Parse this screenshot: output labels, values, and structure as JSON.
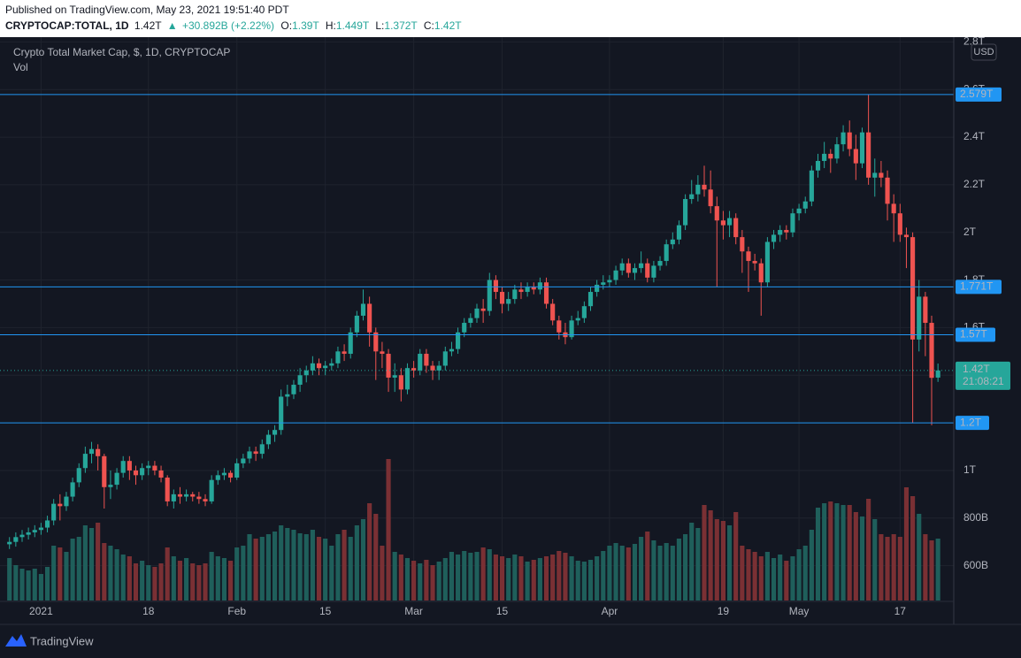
{
  "header": {
    "published": "Published on TradingView.com, May 23, 2021 19:51:40 PDT",
    "symbol": "CRYPTOCAP:TOTAL, 1D",
    "last": "1.42T",
    "arrow": "▲",
    "change": "+30.892B (+2.22%)",
    "ohlc": [
      {
        "label": "O:",
        "value": "1.39T"
      },
      {
        "label": "H:",
        "value": "1.449T"
      },
      {
        "label": "L:",
        "value": "1.372T"
      },
      {
        "label": "C:",
        "value": "1.42T"
      }
    ]
  },
  "footer": {
    "brand": "TradingView"
  },
  "chart_data": {
    "type": "candlestick",
    "title": "Crypto Total Market Cap, $, 1D, CRYPTOCAP",
    "volume_label": "Vol",
    "currency": "USD",
    "up_color": "#26a69a",
    "down_color": "#ef5350",
    "volume_up_color": "#1f5f5b",
    "volume_down_color": "#7a3034",
    "level_color": "#2196f3",
    "grid": true,
    "xlim": [
      -1.5,
      149.5
    ],
    "xticks": [
      {
        "value": 5,
        "label": "2021"
      },
      {
        "value": 22,
        "label": "18"
      },
      {
        "value": 36,
        "label": "Feb"
      },
      {
        "value": 50,
        "label": "15"
      },
      {
        "value": 64,
        "label": "Mar"
      },
      {
        "value": 78,
        "label": "15"
      },
      {
        "value": 95,
        "label": "Apr"
      },
      {
        "value": 113,
        "label": "19"
      },
      {
        "value": 125,
        "label": "May"
      },
      {
        "value": 141,
        "label": "17"
      }
    ],
    "ylim": [
      0.45,
      2.82
    ],
    "yticks": [
      {
        "value": 2.8,
        "label": "2.8T"
      },
      {
        "value": 2.6,
        "label": "2.6T"
      },
      {
        "value": 2.4,
        "label": "2.4T"
      },
      {
        "value": 2.2,
        "label": "2.2T"
      },
      {
        "value": 2,
        "label": "2T"
      },
      {
        "value": 1.8,
        "label": "1.8T"
      },
      {
        "value": 1.6,
        "label": "1.6T"
      },
      {
        "value": 1.4,
        "label": "1.4T"
      },
      {
        "value": 1.2,
        "label": "1.2T"
      },
      {
        "value": 1,
        "label": "1T"
      },
      {
        "value": 0.8,
        "label": "800B"
      },
      {
        "value": 0.6,
        "label": "600B"
      }
    ],
    "levels": [
      {
        "value": 2.579,
        "label": "2.579T"
      },
      {
        "value": 1.771,
        "label": "1.771T"
      },
      {
        "value": 1.57,
        "label": "1.57T"
      },
      {
        "value": 1.2,
        "label": "1.2T"
      }
    ],
    "last": {
      "value": 1.42,
      "label": "1.42T",
      "countdown": "21:08:21"
    },
    "open": [
      0.69,
      0.7,
      0.72,
      0.73,
      0.74,
      0.75,
      0.76,
      0.79,
      0.86,
      0.85,
      0.89,
      0.95,
      1.01,
      1.07,
      1.09,
      1.06,
      0.93,
      0.94,
      0.99,
      1.04,
      1.0,
      0.98,
      1.01,
      1.02,
      1.0,
      0.97,
      0.87,
      0.9,
      0.89,
      0.9,
      0.89,
      0.88,
      0.87,
      0.96,
      0.98,
      0.99,
      0.97,
      1.03,
      1.05,
      1.08,
      1.07,
      1.11,
      1.15,
      1.17,
      1.31,
      1.32,
      1.36,
      1.4,
      1.42,
      1.45,
      1.43,
      1.44,
      1.45,
      1.5,
      1.49,
      1.58,
      1.65,
      1.7,
      1.58,
      1.5,
      1.49,
      1.39,
      1.4,
      1.34,
      1.43,
      1.42,
      1.49,
      1.44,
      1.42,
      1.44,
      1.5,
      1.51,
      1.58,
      1.62,
      1.64,
      1.68,
      1.67,
      1.8,
      1.75,
      1.7,
      1.72,
      1.76,
      1.75,
      1.77,
      1.76,
      1.79,
      1.7,
      1.63,
      1.58,
      1.56,
      1.63,
      1.64,
      1.69,
      1.75,
      1.78,
      1.79,
      1.8,
      1.84,
      1.87,
      1.83,
      1.85,
      1.87,
      1.81,
      1.86,
      1.88,
      1.95,
      1.97,
      2.03,
      2.14,
      2.16,
      2.2,
      2.18,
      2.11,
      2.05,
      2.03,
      2.06,
      1.98,
      1.92,
      1.88,
      1.87,
      1.79,
      1.96,
      1.99,
      2.01,
      2.0,
      2.08,
      2.1,
      2.13,
      2.26,
      2.3,
      2.33,
      2.31,
      2.37,
      2.42,
      2.35,
      2.29,
      2.42,
      2.23,
      2.25,
      2.23,
      2.12,
      2.08,
      1.99,
      1.98,
      1.55,
      1.73,
      1.62,
      1.39
    ],
    "high": [
      0.72,
      0.74,
      0.75,
      0.76,
      0.77,
      0.78,
      0.81,
      0.88,
      0.9,
      0.91,
      0.97,
      1.03,
      1.1,
      1.12,
      1.11,
      1.07,
      1.0,
      1.01,
      1.06,
      1.06,
      1.02,
      1.03,
      1.04,
      1.04,
      1.02,
      0.98,
      0.92,
      0.93,
      0.92,
      0.91,
      0.91,
      0.9,
      0.98,
      1.0,
      1.01,
      1.0,
      1.05,
      1.07,
      1.1,
      1.1,
      1.13,
      1.17,
      1.19,
      1.34,
      1.36,
      1.38,
      1.43,
      1.44,
      1.48,
      1.47,
      1.46,
      1.47,
      1.52,
      1.53,
      1.6,
      1.67,
      1.76,
      1.73,
      1.6,
      1.54,
      1.51,
      1.45,
      1.43,
      1.45,
      1.46,
      1.51,
      1.51,
      1.46,
      1.46,
      1.52,
      1.54,
      1.6,
      1.64,
      1.66,
      1.7,
      1.72,
      1.83,
      1.82,
      1.77,
      1.75,
      1.78,
      1.79,
      1.79,
      1.79,
      1.81,
      1.81,
      1.72,
      1.65,
      1.62,
      1.65,
      1.67,
      1.71,
      1.77,
      1.8,
      1.82,
      1.82,
      1.86,
      1.89,
      1.89,
      1.87,
      1.92,
      1.89,
      1.88,
      1.9,
      1.97,
      2.0,
      2.05,
      2.16,
      2.22,
      2.24,
      2.28,
      2.26,
      2.15,
      2.09,
      2.09,
      2.08,
      2.01,
      1.94,
      1.91,
      1.89,
      1.98,
      2.01,
      2.03,
      2.03,
      2.1,
      2.12,
      2.15,
      2.28,
      2.33,
      2.38,
      2.35,
      2.4,
      2.45,
      2.47,
      2.41,
      2.44,
      2.579,
      2.31,
      2.3,
      2.26,
      2.16,
      2.12,
      2.02,
      2.0,
      1.8,
      1.75,
      1.65,
      1.449
    ],
    "low": [
      0.67,
      0.68,
      0.7,
      0.71,
      0.72,
      0.73,
      0.74,
      0.77,
      0.79,
      0.83,
      0.87,
      0.93,
      0.99,
      1.03,
      1.0,
      0.84,
      0.88,
      0.92,
      0.97,
      0.96,
      0.94,
      0.96,
      0.98,
      0.98,
      0.95,
      0.85,
      0.84,
      0.86,
      0.87,
      0.87,
      0.86,
      0.85,
      0.86,
      0.94,
      0.96,
      0.95,
      0.96,
      1.01,
      1.03,
      1.04,
      1.05,
      1.09,
      1.12,
      1.15,
      1.27,
      1.3,
      1.33,
      1.37,
      1.4,
      1.4,
      1.4,
      1.42,
      1.43,
      1.46,
      1.47,
      1.56,
      1.63,
      1.52,
      1.38,
      1.43,
      1.33,
      1.33,
      1.29,
      1.32,
      1.39,
      1.4,
      1.41,
      1.38,
      1.38,
      1.42,
      1.48,
      1.49,
      1.56,
      1.6,
      1.62,
      1.62,
      1.65,
      1.72,
      1.66,
      1.67,
      1.7,
      1.72,
      1.73,
      1.74,
      1.74,
      1.68,
      1.61,
      1.55,
      1.53,
      1.55,
      1.61,
      1.62,
      1.67,
      1.73,
      1.76,
      1.77,
      1.78,
      1.82,
      1.81,
      1.8,
      1.83,
      1.79,
      1.79,
      1.84,
      1.86,
      1.93,
      1.95,
      2.01,
      2.12,
      2.13,
      2.15,
      2.08,
      1.77,
      1.97,
      1.98,
      1.95,
      1.83,
      1.75,
      1.84,
      1.65,
      1.77,
      1.93,
      1.96,
      1.97,
      1.98,
      2.05,
      2.08,
      2.11,
      2.23,
      2.27,
      2.25,
      2.29,
      2.34,
      2.32,
      2.22,
      2.27,
      2.2,
      2.15,
      2.19,
      2.05,
      1.96,
      1.96,
      1.85,
      1.2,
      1.5,
      1.48,
      1.19,
      1.372
    ],
    "close": [
      0.7,
      0.72,
      0.73,
      0.74,
      0.75,
      0.76,
      0.79,
      0.86,
      0.85,
      0.89,
      0.95,
      1.01,
      1.07,
      1.09,
      1.06,
      0.93,
      0.94,
      0.99,
      1.04,
      1.0,
      0.98,
      1.01,
      1.02,
      1.0,
      0.97,
      0.87,
      0.9,
      0.89,
      0.9,
      0.89,
      0.88,
      0.87,
      0.96,
      0.98,
      0.99,
      0.97,
      1.03,
      1.05,
      1.08,
      1.07,
      1.11,
      1.15,
      1.17,
      1.31,
      1.32,
      1.36,
      1.4,
      1.42,
      1.45,
      1.43,
      1.44,
      1.45,
      1.5,
      1.49,
      1.58,
      1.65,
      1.7,
      1.58,
      1.5,
      1.49,
      1.39,
      1.4,
      1.34,
      1.43,
      1.42,
      1.49,
      1.44,
      1.42,
      1.44,
      1.5,
      1.51,
      1.58,
      1.62,
      1.64,
      1.68,
      1.67,
      1.8,
      1.75,
      1.7,
      1.72,
      1.76,
      1.75,
      1.77,
      1.76,
      1.79,
      1.7,
      1.63,
      1.58,
      1.56,
      1.63,
      1.64,
      1.69,
      1.75,
      1.78,
      1.79,
      1.8,
      1.84,
      1.87,
      1.83,
      1.85,
      1.87,
      1.81,
      1.86,
      1.88,
      1.95,
      1.97,
      2.03,
      2.14,
      2.16,
      2.2,
      2.18,
      2.11,
      2.05,
      2.03,
      2.06,
      1.98,
      1.92,
      1.88,
      1.87,
      1.79,
      1.96,
      1.99,
      2.01,
      2.0,
      2.08,
      2.1,
      2.13,
      2.26,
      2.3,
      2.33,
      2.31,
      2.37,
      2.42,
      2.35,
      2.29,
      2.42,
      2.23,
      2.25,
      2.23,
      2.12,
      2.08,
      1.99,
      1.98,
      1.55,
      1.73,
      1.62,
      1.389,
      1.42
    ],
    "volume": [
      48,
      40,
      36,
      34,
      36,
      30,
      38,
      62,
      60,
      55,
      70,
      72,
      85,
      82,
      88,
      65,
      62,
      58,
      52,
      50,
      42,
      45,
      40,
      38,
      42,
      60,
      50,
      45,
      48,
      42,
      40,
      42,
      55,
      50,
      48,
      45,
      60,
      62,
      75,
      70,
      72,
      75,
      78,
      85,
      82,
      80,
      76,
      75,
      80,
      72,
      70,
      62,
      75,
      80,
      72,
      85,
      92,
      110,
      98,
      62,
      160,
      55,
      52,
      48,
      45,
      42,
      46,
      40,
      44,
      48,
      55,
      52,
      56,
      54,
      55,
      60,
      58,
      52,
      50,
      48,
      52,
      50,
      44,
      46,
      48,
      50,
      52,
      56,
      54,
      50,
      45,
      44,
      46,
      50,
      56,
      62,
      65,
      62,
      60,
      64,
      72,
      78,
      68,
      62,
      65,
      62,
      70,
      75,
      88,
      82,
      108,
      102,
      92,
      90,
      85,
      100,
      62,
      58,
      55,
      50,
      55,
      48,
      52,
      45,
      50,
      58,
      62,
      80,
      105,
      110,
      112,
      110,
      108,
      108,
      100,
      95,
      115,
      92,
      75,
      72,
      75,
      72,
      128,
      118,
      98,
      75,
      68,
      70
    ]
  }
}
